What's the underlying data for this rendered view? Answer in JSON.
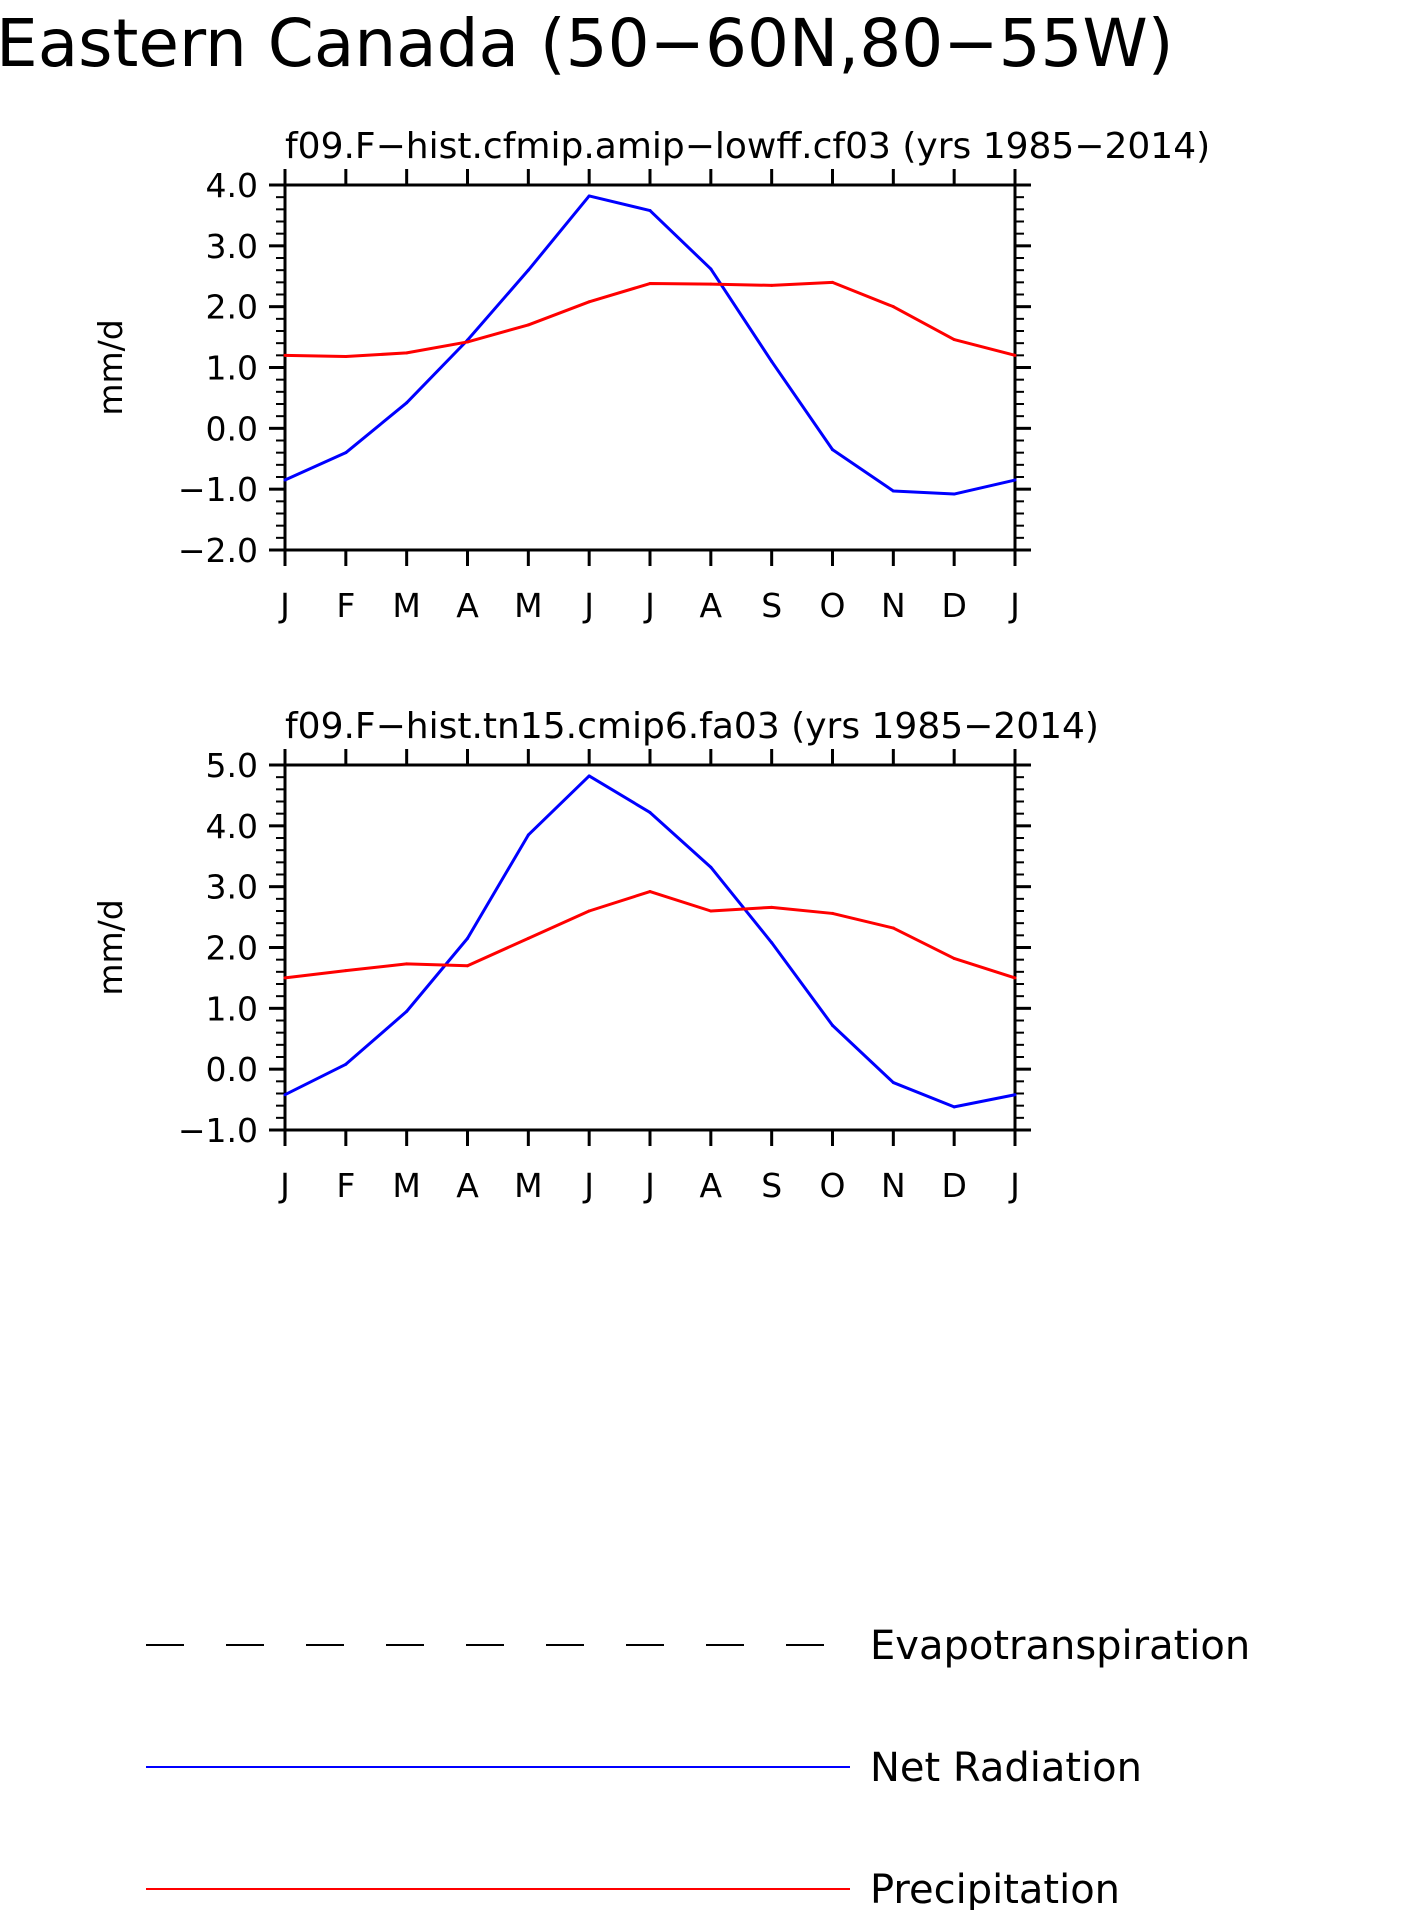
{
  "figure": {
    "title": "Eastern Canada (50−60N,80−55W)"
  },
  "chart_data": [
    {
      "type": "line",
      "title": "f09.F−hist.cfmip.amip−lowff.cf03 (yrs 1985−2014)",
      "xlabel": "",
      "ylabel": "mm/d",
      "categories": [
        "J",
        "F",
        "M",
        "A",
        "M",
        "J",
        "J",
        "A",
        "S",
        "O",
        "N",
        "D",
        "J"
      ],
      "ylim": [
        -2.0,
        4.0
      ],
      "yticks": [
        "−2.0",
        "−1.0",
        "0.0",
        "1.0",
        "2.0",
        "3.0",
        "4.0"
      ],
      "grid": false,
      "series": [
        {
          "name": "Net Radiation",
          "color": "#0000ff",
          "values": [
            -0.85,
            -0.4,
            0.42,
            1.45,
            2.6,
            3.82,
            3.58,
            2.62,
            1.1,
            -0.35,
            -1.03,
            -1.08,
            -0.85
          ]
        },
        {
          "name": "Precipitation",
          "color": "#ff0000",
          "values": [
            1.2,
            1.18,
            1.24,
            1.42,
            1.7,
            2.08,
            2.38,
            2.37,
            2.35,
            2.4,
            2.0,
            1.46,
            1.2
          ]
        }
      ]
    },
    {
      "type": "line",
      "title": "f09.F−hist.tn15.cmip6.fa03 (yrs 1985−2014)",
      "xlabel": "",
      "ylabel": "mm/d",
      "categories": [
        "J",
        "F",
        "M",
        "A",
        "M",
        "J",
        "J",
        "A",
        "S",
        "O",
        "N",
        "D",
        "J"
      ],
      "ylim": [
        -1.0,
        5.0
      ],
      "yticks": [
        "−1.0",
        "0.0",
        "1.0",
        "2.0",
        "3.0",
        "4.0",
        "5.0"
      ],
      "grid": false,
      "series": [
        {
          "name": "Net Radiation",
          "color": "#0000ff",
          "values": [
            -0.42,
            0.08,
            0.95,
            2.15,
            3.85,
            4.82,
            4.22,
            3.32,
            2.08,
            0.72,
            -0.22,
            -0.62,
            -0.42
          ]
        },
        {
          "name": "Precipitation",
          "color": "#ff0000",
          "values": [
            1.5,
            1.62,
            1.73,
            1.7,
            2.15,
            2.6,
            2.92,
            2.6,
            2.66,
            2.56,
            2.32,
            1.82,
            1.5
          ]
        }
      ]
    }
  ],
  "legend": {
    "position": "bottom-left",
    "items": [
      {
        "label": "Evapotranspiration",
        "color": "#000000",
        "style": "dashed"
      },
      {
        "label": "Net Radiation",
        "color": "#0000ff",
        "style": "solid"
      },
      {
        "label": "Precipitation",
        "color": "#ff0000",
        "style": "solid"
      }
    ]
  }
}
